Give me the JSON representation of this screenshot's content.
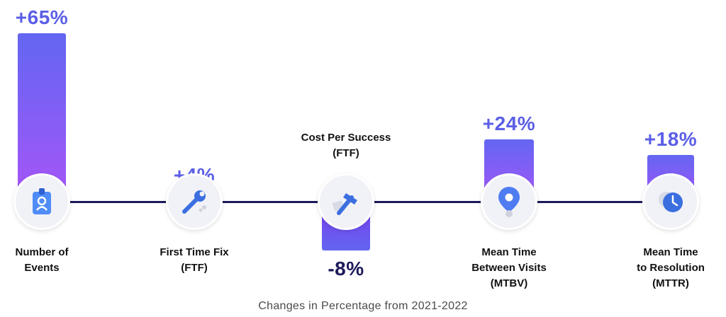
{
  "chart_data": {
    "type": "bar",
    "categories": [
      [
        "Number of",
        "Events"
      ],
      [
        "First Time Fix",
        "(FTF)"
      ],
      [
        "Cost Per Success",
        "(FTF)"
      ],
      [
        "Mean Time",
        "Between Visits",
        "(MTBV)"
      ],
      [
        "Mean Time",
        "to Resolution",
        "(MTTR)"
      ]
    ],
    "values": [
      65,
      4,
      -8,
      24,
      18
    ],
    "value_labels": [
      "+65%",
      "+4%",
      "-8%",
      "+24%",
      "+18%"
    ],
    "icons": [
      "badge-icon",
      "wrench-icon",
      "hammer-icon",
      "location-pin-icon",
      "clock-icon"
    ],
    "caption": "Changes in Percentage from 2021-2022",
    "colors": {
      "bar": "#8b5cf6",
      "bar_top": "#6366f1",
      "value_text": "#5b5fe6",
      "negative_text": "#1c1a5a",
      "timeline": "#1c1a5a"
    }
  }
}
